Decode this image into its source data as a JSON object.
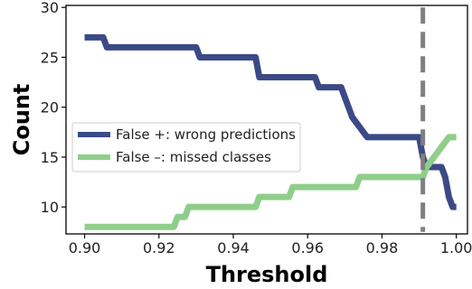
{
  "chart_data": {
    "type": "line",
    "title": "",
    "xlabel": "Threshold",
    "ylabel": "Count",
    "xlim": [
      0.895,
      1.003
    ],
    "ylim": [
      7.3,
      30.2
    ],
    "x_ticks": [
      0.9,
      0.92,
      0.94,
      0.96,
      0.98,
      1.0
    ],
    "x_tick_labels": [
      "0.90",
      "0.92",
      "0.94",
      "0.96",
      "0.98",
      "1.00"
    ],
    "y_ticks": [
      10,
      15,
      20,
      25,
      30
    ],
    "y_tick_labels": [
      "10",
      "15",
      "20",
      "25",
      "30"
    ],
    "grid": false,
    "legend_position": "center-left",
    "series": [
      {
        "name": "False +: wrong predictions",
        "color": "#3b4a87",
        "step": true,
        "points": [
          [
            0.9,
            27
          ],
          [
            0.905,
            27
          ],
          [
            0.906,
            26
          ],
          [
            0.93,
            26
          ],
          [
            0.931,
            25
          ],
          [
            0.946,
            25
          ],
          [
            0.947,
            23
          ],
          [
            0.962,
            23
          ],
          [
            0.963,
            22
          ],
          [
            0.969,
            22
          ],
          [
            0.97,
            21
          ],
          [
            0.971,
            20
          ],
          [
            0.972,
            19
          ],
          [
            0.974,
            18
          ],
          [
            0.976,
            17
          ],
          [
            0.99,
            17
          ],
          [
            0.991,
            15
          ],
          [
            0.992,
            14
          ],
          [
            0.996,
            14
          ],
          [
            0.997,
            13
          ],
          [
            0.998,
            11
          ],
          [
            0.999,
            10
          ],
          [
            1.0,
            10
          ]
        ]
      },
      {
        "name": "False –: missed classes",
        "color": "#8fce8a",
        "step": true,
        "points": [
          [
            0.9,
            8
          ],
          [
            0.924,
            8
          ],
          [
            0.925,
            9
          ],
          [
            0.927,
            9
          ],
          [
            0.928,
            10
          ],
          [
            0.946,
            10
          ],
          [
            0.947,
            11
          ],
          [
            0.955,
            11
          ],
          [
            0.956,
            12
          ],
          [
            0.973,
            12
          ],
          [
            0.974,
            13
          ],
          [
            0.991,
            13
          ],
          [
            0.992,
            14
          ],
          [
            0.994,
            15
          ],
          [
            0.996,
            16
          ],
          [
            0.998,
            17
          ],
          [
            1.0,
            17
          ]
        ]
      }
    ],
    "annotations": [
      {
        "type": "vertical-dashed-line",
        "x": 0.991,
        "y_range": [
          7.5,
          30.0
        ],
        "color": "#7f7f7f"
      }
    ]
  }
}
